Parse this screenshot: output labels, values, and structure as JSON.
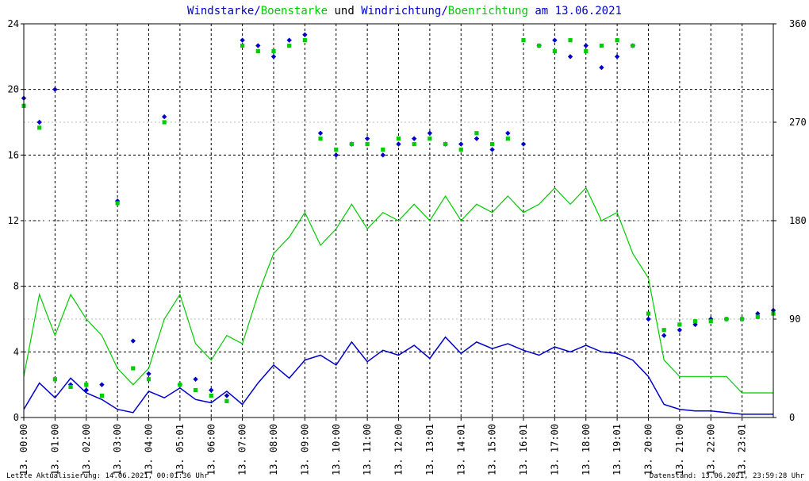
{
  "chart_data": {
    "type": "line",
    "title": {
      "parts": [
        {
          "text": "Windstarke",
          "color": "#0000cc"
        },
        {
          "text": "/",
          "color": "#0000cc"
        },
        {
          "text": "Boenstarke",
          "color": "#00cc00"
        },
        {
          "text": " und ",
          "color": "#000000"
        },
        {
          "text": "Windrichtung",
          "color": "#0000cc"
        },
        {
          "text": "/",
          "color": "#0000cc"
        },
        {
          "text": "Boenrichtung",
          "color": "#00cc00"
        },
        {
          "text": " am 13.06.2021",
          "color": "#0000cc"
        }
      ]
    },
    "date": "13.06.2021",
    "xlim_hours": [
      0,
      24
    ],
    "x_ticks": [
      "13. 00:00",
      "13. 01:00",
      "13. 02:00",
      "13. 03:00",
      "13. 04:00",
      "13. 05:01",
      "13. 06:00",
      "13. 07:00",
      "13. 08:00",
      "13. 09:00",
      "13. 10:00",
      "13. 11:00",
      "13. 12:00",
      "13. 13:01",
      "13. 14:01",
      "13. 15:00",
      "13. 16:01",
      "13. 17:00",
      "13. 18:00",
      "13. 19:01",
      "13. 20:00",
      "13. 21:00",
      "13. 22:00",
      "13. 23:01"
    ],
    "y_left": {
      "ylim": [
        0,
        24
      ],
      "ticks": [
        "0",
        "4",
        "8",
        "12",
        "16",
        "20",
        "24"
      ]
    },
    "y_right": {
      "ylim": [
        0,
        360
      ],
      "ticks": [
        "0",
        "90",
        "180",
        "270",
        "360"
      ]
    },
    "grid": true,
    "series": [
      {
        "key": "wind",
        "color": "#0000cc",
        "points": [
          [
            0.0,
            0.5
          ],
          [
            0.5,
            2.1
          ],
          [
            1.0,
            1.2
          ],
          [
            1.5,
            2.4
          ],
          [
            2.0,
            1.5
          ],
          [
            2.5,
            1.1
          ],
          [
            3.0,
            0.5
          ],
          [
            3.5,
            0.3
          ],
          [
            4.0,
            1.6
          ],
          [
            4.5,
            1.2
          ],
          [
            5.0,
            1.8
          ],
          [
            5.5,
            1.1
          ],
          [
            6.0,
            0.9
          ],
          [
            6.5,
            1.6
          ],
          [
            7.0,
            0.8
          ],
          [
            7.5,
            2.1
          ],
          [
            8.0,
            3.2
          ],
          [
            8.5,
            2.4
          ],
          [
            9.0,
            3.5
          ],
          [
            9.5,
            3.8
          ],
          [
            10.0,
            3.2
          ],
          [
            10.5,
            4.6
          ],
          [
            11.0,
            3.4
          ],
          [
            11.5,
            4.1
          ],
          [
            12.0,
            3.8
          ],
          [
            12.5,
            4.4
          ],
          [
            13.0,
            3.6
          ],
          [
            13.5,
            4.9
          ],
          [
            14.0,
            3.9
          ],
          [
            14.5,
            4.6
          ],
          [
            15.0,
            4.2
          ],
          [
            15.5,
            4.5
          ],
          [
            16.0,
            4.1
          ],
          [
            16.5,
            3.8
          ],
          [
            17.0,
            4.3
          ],
          [
            17.5,
            4.0
          ],
          [
            18.0,
            4.4
          ],
          [
            18.5,
            4.0
          ],
          [
            19.0,
            3.9
          ],
          [
            19.5,
            3.5
          ],
          [
            20.0,
            2.5
          ],
          [
            20.5,
            0.8
          ],
          [
            21.0,
            0.5
          ],
          [
            21.5,
            0.4
          ],
          [
            22.0,
            0.4
          ],
          [
            22.5,
            0.3
          ],
          [
            23.0,
            0.2
          ],
          [
            23.5,
            0.2
          ],
          [
            24.0,
            0.2
          ]
        ]
      },
      {
        "key": "gust",
        "color": "#00cc00",
        "points": [
          [
            0.0,
            2.5
          ],
          [
            0.5,
            7.5
          ],
          [
            1.0,
            5.0
          ],
          [
            1.5,
            7.5
          ],
          [
            2.0,
            6.0
          ],
          [
            2.5,
            5.0
          ],
          [
            3.0,
            3.0
          ],
          [
            3.5,
            2.0
          ],
          [
            4.0,
            3.0
          ],
          [
            4.5,
            6.0
          ],
          [
            5.0,
            7.5
          ],
          [
            5.5,
            4.5
          ],
          [
            6.0,
            3.5
          ],
          [
            6.5,
            5.0
          ],
          [
            7.0,
            4.5
          ],
          [
            7.5,
            7.5
          ],
          [
            8.0,
            10.0
          ],
          [
            8.5,
            11.0
          ],
          [
            9.0,
            12.5
          ],
          [
            9.5,
            10.5
          ],
          [
            10.0,
            11.5
          ],
          [
            10.5,
            13.0
          ],
          [
            11.0,
            11.5
          ],
          [
            11.5,
            12.5
          ],
          [
            12.0,
            12.0
          ],
          [
            12.5,
            13.0
          ],
          [
            13.0,
            12.0
          ],
          [
            13.5,
            13.5
          ],
          [
            14.0,
            12.0
          ],
          [
            14.5,
            13.0
          ],
          [
            15.0,
            12.5
          ],
          [
            15.5,
            13.5
          ],
          [
            16.0,
            12.5
          ],
          [
            16.5,
            13.0
          ],
          [
            17.0,
            14.0
          ],
          [
            17.5,
            13.0
          ],
          [
            18.0,
            14.0
          ],
          [
            18.5,
            12.0
          ],
          [
            19.0,
            12.5
          ],
          [
            19.5,
            10.0
          ],
          [
            20.0,
            8.5
          ],
          [
            20.5,
            3.5
          ],
          [
            21.0,
            2.5
          ],
          [
            21.5,
            2.5
          ],
          [
            22.0,
            2.5
          ],
          [
            22.5,
            2.5
          ],
          [
            23.0,
            1.5
          ],
          [
            23.5,
            1.5
          ],
          [
            24.0,
            1.5
          ]
        ]
      },
      {
        "key": "dir",
        "color": "#0000cc",
        "points": [
          [
            0.0,
            292
          ],
          [
            0.5,
            270
          ],
          [
            1.0,
            300
          ],
          [
            1.5,
            30
          ],
          [
            2.0,
            25
          ],
          [
            2.5,
            30
          ],
          [
            3.0,
            198
          ],
          [
            3.5,
            70
          ],
          [
            4.0,
            40
          ],
          [
            4.5,
            275
          ],
          [
            5.0,
            30
          ],
          [
            5.5,
            35
          ],
          [
            6.0,
            25
          ],
          [
            6.5,
            20
          ],
          [
            7.0,
            345
          ],
          [
            7.5,
            340
          ],
          [
            8.0,
            330
          ],
          [
            8.5,
            345
          ],
          [
            9.0,
            350
          ],
          [
            9.5,
            260
          ],
          [
            10.0,
            240
          ],
          [
            10.5,
            250
          ],
          [
            11.0,
            255
          ],
          [
            11.5,
            240
          ],
          [
            12.0,
            250
          ],
          [
            12.5,
            255
          ],
          [
            13.0,
            260
          ],
          [
            13.5,
            250
          ],
          [
            14.0,
            250
          ],
          [
            14.5,
            255
          ],
          [
            15.0,
            245
          ],
          [
            15.5,
            260
          ],
          [
            16.0,
            250
          ],
          [
            16.5,
            340
          ],
          [
            17.0,
            345
          ],
          [
            17.5,
            330
          ],
          [
            18.0,
            340
          ],
          [
            18.5,
            320
          ],
          [
            19.0,
            330
          ],
          [
            19.5,
            340
          ],
          [
            20.0,
            90
          ],
          [
            20.5,
            75
          ],
          [
            21.0,
            80
          ],
          [
            21.5,
            85
          ],
          [
            22.0,
            90
          ],
          [
            22.5,
            90
          ],
          [
            23.0,
            90
          ],
          [
            23.5,
            95
          ],
          [
            24.0,
            98
          ]
        ]
      },
      {
        "key": "gustdir",
        "color": "#00cc00",
        "points": [
          [
            0.0,
            285
          ],
          [
            0.5,
            265
          ],
          [
            1.0,
            35
          ],
          [
            1.5,
            28
          ],
          [
            2.0,
            30
          ],
          [
            2.5,
            20
          ],
          [
            3.0,
            196
          ],
          [
            3.5,
            45
          ],
          [
            4.0,
            35
          ],
          [
            4.5,
            270
          ],
          [
            5.0,
            30
          ],
          [
            5.5,
            25
          ],
          [
            6.0,
            20
          ],
          [
            6.5,
            15
          ],
          [
            7.0,
            340
          ],
          [
            7.5,
            335
          ],
          [
            8.0,
            335
          ],
          [
            8.5,
            340
          ],
          [
            9.0,
            345
          ],
          [
            9.5,
            255
          ],
          [
            10.0,
            245
          ],
          [
            10.5,
            250
          ],
          [
            11.0,
            250
          ],
          [
            11.5,
            245
          ],
          [
            12.0,
            255
          ],
          [
            12.5,
            250
          ],
          [
            13.0,
            255
          ],
          [
            13.5,
            250
          ],
          [
            14.0,
            245
          ],
          [
            14.5,
            260
          ],
          [
            15.0,
            250
          ],
          [
            15.5,
            255
          ],
          [
            16.0,
            345
          ],
          [
            16.5,
            340
          ],
          [
            17.0,
            335
          ],
          [
            17.5,
            345
          ],
          [
            18.0,
            335
          ],
          [
            18.5,
            340
          ],
          [
            19.0,
            345
          ],
          [
            19.5,
            340
          ],
          [
            20.0,
            95
          ],
          [
            20.5,
            80
          ],
          [
            21.0,
            85
          ],
          [
            21.5,
            88
          ],
          [
            22.0,
            88
          ],
          [
            22.5,
            90
          ],
          [
            23.0,
            90
          ],
          [
            23.5,
            92
          ],
          [
            24.0,
            95
          ]
        ]
      }
    ],
    "footer_left": "Letzte Aktualisierung: 14.06.2021, 00:01:36 Uhr",
    "footer_right": "Datenstand: 13.06.2021, 23:59:28 Uhr"
  }
}
